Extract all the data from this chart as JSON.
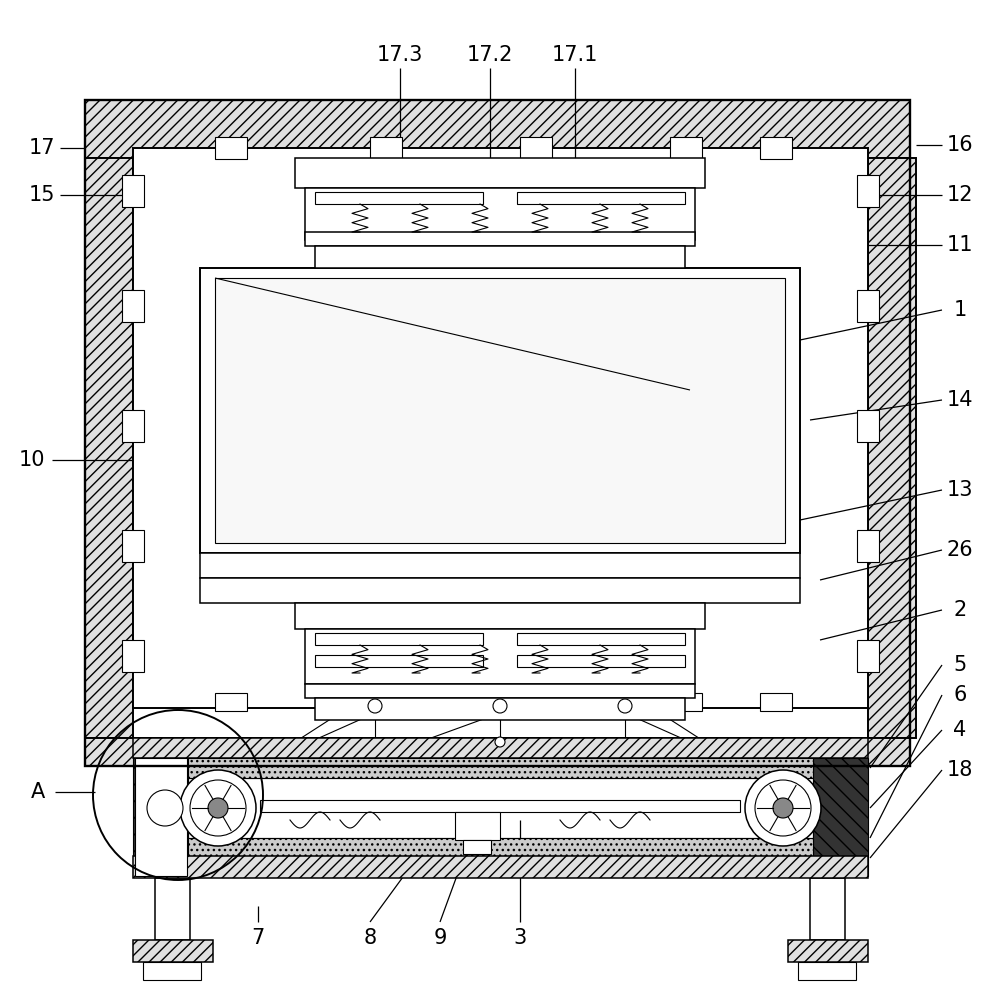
{
  "bg_color": "#ffffff",
  "line_color": "#000000",
  "fig_width": 10.0,
  "fig_height": 9.94,
  "lw_main": 1.4,
  "lw_thin": 0.8,
  "lw_med": 1.1
}
